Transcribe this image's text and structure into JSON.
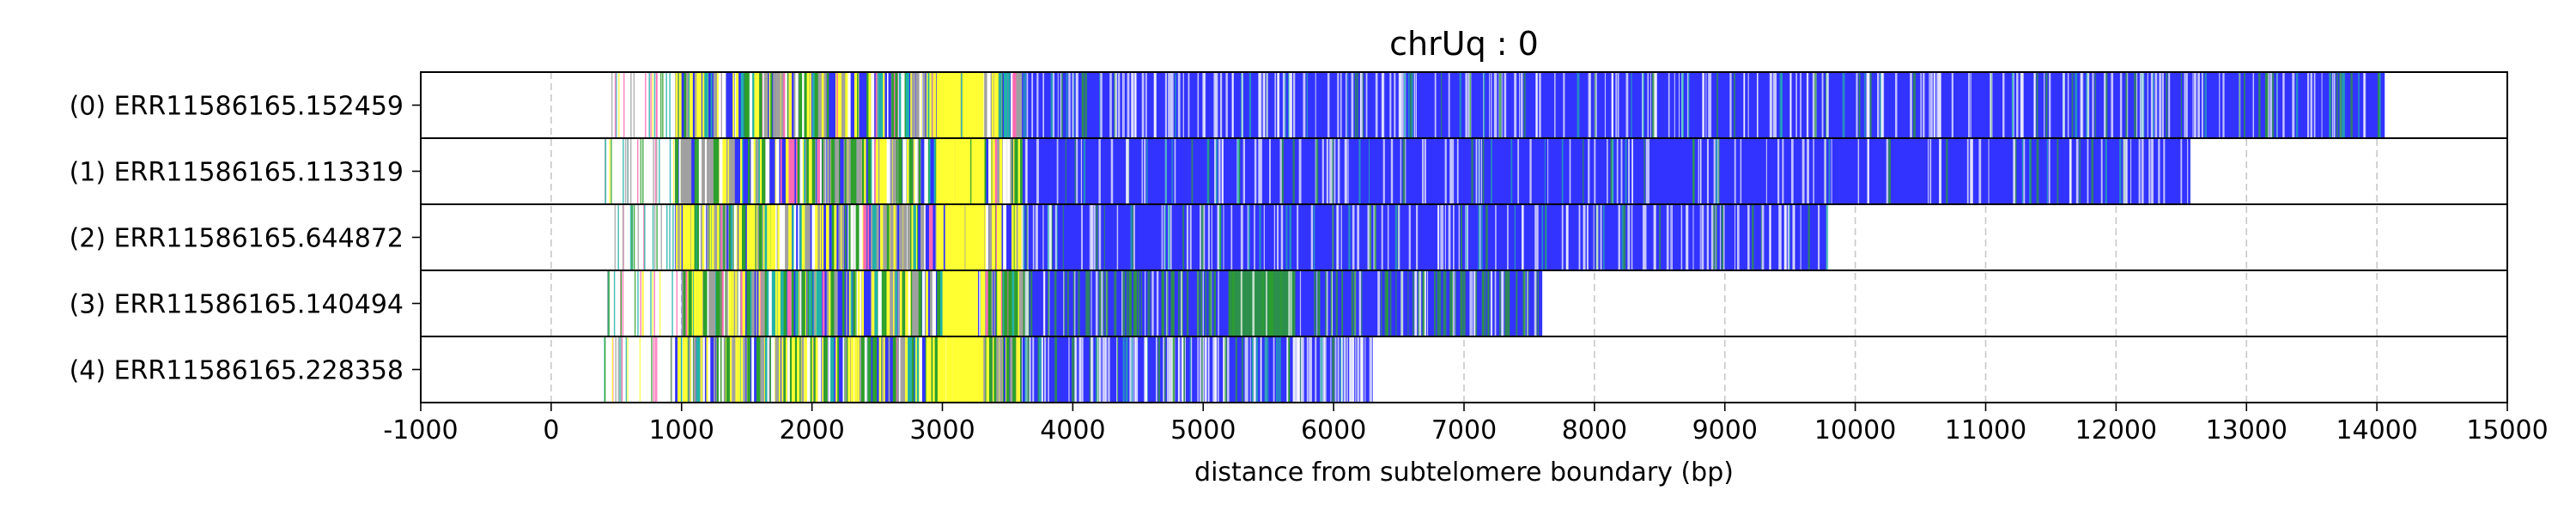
{
  "chart_data": {
    "type": "read-alignment-track",
    "title": "chrUq : 0",
    "xlabel": "distance from subtelomere boundary (bp)",
    "xlim": [
      -1000,
      15000
    ],
    "xticks": [
      -1000,
      0,
      1000,
      2000,
      3000,
      4000,
      5000,
      6000,
      7000,
      8000,
      9000,
      10000,
      11000,
      12000,
      13000,
      14000,
      15000
    ],
    "grid": "vertical dashed",
    "colors": {
      "telomere": "#3333ff",
      "variant_green": "#2ca02c",
      "variant_yellow": "#ffff33",
      "variant_pink": "#ff69b4",
      "variant_teal": "#20b2aa",
      "variant_gray": "#a0a0a0",
      "background": "#ffffff"
    },
    "reads": [
      {
        "label": "(0) ERR11586165.152459",
        "start": 400,
        "end": 14060,
        "blue_from": 950,
        "yellow_band": [
          2950,
          3300
        ],
        "green_band": null,
        "density": "high-white"
      },
      {
        "label": "(1) ERR11586165.113319",
        "start": 400,
        "end": 12570,
        "blue_from": 950,
        "yellow_band": [
          2950,
          3300
        ],
        "green_band": null,
        "density": "medium"
      },
      {
        "label": "(2) ERR11586165.644872",
        "start": 450,
        "end": 9780,
        "blue_from": 950,
        "yellow_band": [
          2950,
          3300
        ],
        "green_band": null,
        "density": "medium"
      },
      {
        "label": "(3) ERR11586165.140494",
        "start": 400,
        "end": 7600,
        "blue_from": 1000,
        "yellow_band": [
          3000,
          3300
        ],
        "green_band": [
          5200,
          5700
        ],
        "density": "high-green"
      },
      {
        "label": "(4) ERR11586165.228358",
        "start": 400,
        "end": 6300,
        "blue_from": 950,
        "yellow_band": [
          2950,
          3300
        ],
        "green_band": null,
        "density": "medium"
      }
    ]
  }
}
